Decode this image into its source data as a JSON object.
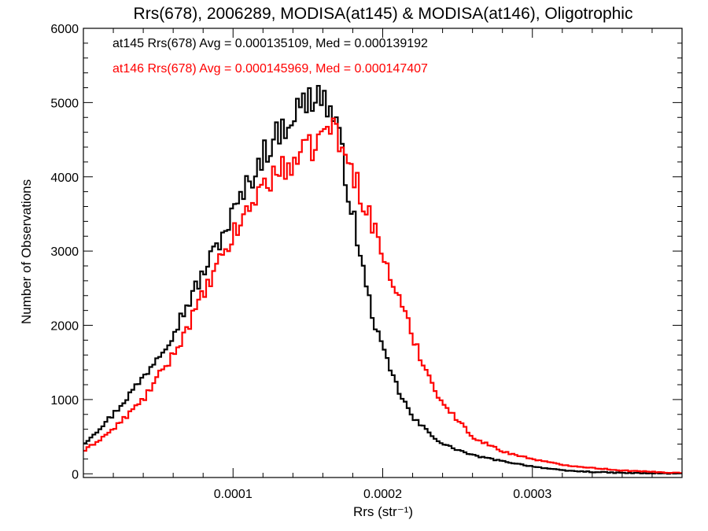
{
  "chart_data": {
    "type": "line",
    "title": "Rrs(678), 2006289, MODISA(at145) & MODISA(at146), Oligotrophic",
    "xlabel": "Rrs (str⁻¹)",
    "ylabel": "Number of Observations",
    "xlim": [
      0.0,
      0.0004
    ],
    "ylim": [
      -50,
      6000
    ],
    "x_ticks": [
      0.0001,
      0.0002,
      0.0003
    ],
    "x_tick_labels": [
      "0.0001",
      "0.0002",
      "0.0003"
    ],
    "y_ticks": [
      0,
      1000,
      2000,
      3000,
      4000,
      5000,
      6000
    ],
    "y_tick_labels": [
      "0",
      "1000",
      "2000",
      "3000",
      "4000",
      "5000",
      "6000"
    ],
    "grid": false,
    "legend_position": "top-left",
    "colors": {
      "at145": "#000000",
      "at146": "#ff0000"
    },
    "bin_width": 2e-06,
    "series": [
      {
        "name": "at145",
        "legend_text": "at145 Rrs(678) Avg = 0.000135109, Med = 0.000139192",
        "color": "#000000",
        "peak": 0.000157,
        "keypoints": [
          [
            0.0,
            400
          ],
          [
            2e-05,
            800
          ],
          [
            4e-05,
            1300
          ],
          [
            6e-05,
            1900
          ],
          [
            8e-05,
            2700
          ],
          [
            0.0001,
            3500
          ],
          [
            0.00012,
            4300
          ],
          [
            0.00014,
            4850
          ],
          [
            0.000157,
            5150
          ],
          [
            0.000165,
            4900
          ],
          [
            0.00017,
            4600
          ],
          [
            0.00018,
            3500
          ],
          [
            0.00019,
            2400
          ],
          [
            0.0002,
            1650
          ],
          [
            0.00021,
            1150
          ],
          [
            0.00022,
            750
          ],
          [
            0.00024,
            400
          ],
          [
            0.00026,
            250
          ],
          [
            0.00028,
            170
          ],
          [
            0.0003,
            100
          ],
          [
            0.00032,
            45
          ],
          [
            0.00034,
            25
          ],
          [
            0.00036,
            12
          ],
          [
            0.00038,
            6
          ],
          [
            0.0004,
            3
          ]
        ]
      },
      {
        "name": "at146",
        "legend_text": "at146 Rrs(678) Avg = 0.000145969, Med = 0.000147407",
        "color": "#ff0000",
        "peak": 0.000165,
        "keypoints": [
          [
            0.0,
            300
          ],
          [
            2e-05,
            600
          ],
          [
            4e-05,
            1000
          ],
          [
            6e-05,
            1600
          ],
          [
            8e-05,
            2400
          ],
          [
            0.0001,
            3200
          ],
          [
            0.00012,
            3900
          ],
          [
            0.00013,
            4050
          ],
          [
            0.00014,
            4200
          ],
          [
            0.00015,
            4350
          ],
          [
            0.00016,
            4550
          ],
          [
            0.000165,
            4750
          ],
          [
            0.00017,
            4500
          ],
          [
            0.00018,
            4050
          ],
          [
            0.00019,
            3550
          ],
          [
            0.0002,
            2950
          ],
          [
            0.00021,
            2400
          ],
          [
            0.00022,
            1850
          ],
          [
            0.00023,
            1350
          ],
          [
            0.00024,
            950
          ],
          [
            0.00026,
            500
          ],
          [
            0.00028,
            300
          ],
          [
            0.0003,
            200
          ],
          [
            0.00032,
            120
          ],
          [
            0.00034,
            80
          ],
          [
            0.00036,
            45
          ],
          [
            0.00038,
            25
          ],
          [
            0.0004,
            12
          ]
        ]
      }
    ]
  }
}
